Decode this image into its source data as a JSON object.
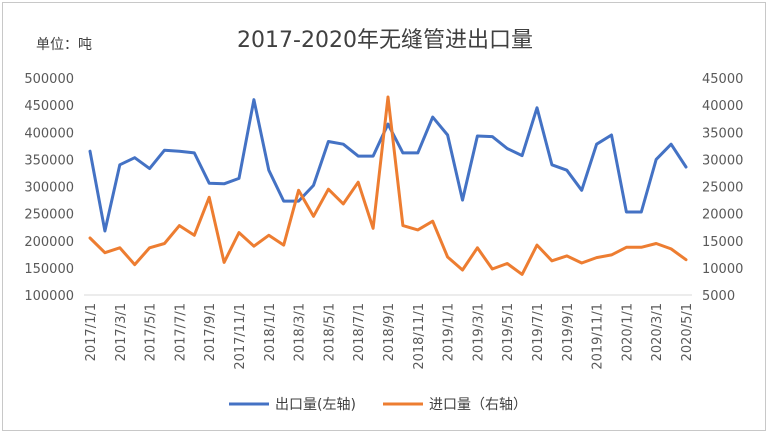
{
  "unit_label": "单位：吨",
  "title": "2017-2020年无缝管进出口量",
  "chart_data": {
    "type": "line",
    "title": "2017-2020年无缝管进出口量",
    "categories": [
      "2017/1/1",
      "2017/2/1",
      "2017/3/1",
      "2017/4/1",
      "2017/5/1",
      "2017/6/1",
      "2017/7/1",
      "2017/8/1",
      "2017/9/1",
      "2017/10/1",
      "2017/11/1",
      "2017/12/1",
      "2018/1/1",
      "2018/2/1",
      "2018/3/1",
      "2018/4/1",
      "2018/5/1",
      "2018/6/1",
      "2018/7/1",
      "2018/8/1",
      "2018/9/1",
      "2018/10/1",
      "2018/11/1",
      "2018/12/1",
      "2019/1/1",
      "2019/2/1",
      "2019/3/1",
      "2019/4/1",
      "2019/5/1",
      "2019/6/1",
      "2019/7/1",
      "2019/8/1",
      "2019/9/1",
      "2019/10/1",
      "2019/11/1",
      "2019/12/1",
      "2020/1/1",
      "2020/2/1",
      "2020/3/1",
      "2020/4/1",
      "2020/5/1"
    ],
    "tick_labels": [
      "2017/1/1",
      "2017/3/1",
      "2017/5/1",
      "2017/7/1",
      "2017/9/1",
      "2017/11/1",
      "2018/1/1",
      "2018/3/1",
      "2018/5/1",
      "2018/7/1",
      "2018/9/1",
      "2018/11/1",
      "2019/1/1",
      "2019/3/1",
      "2019/5/1",
      "2019/7/1",
      "2019/9/1",
      "2019/11/1",
      "2020/1/1",
      "2020/3/1",
      "2020/5/1"
    ],
    "y_left": {
      "min": 100000,
      "max": 500000,
      "ticks": [
        "500000",
        "450000",
        "400000",
        "350000",
        "300000",
        "250000",
        "200000",
        "150000",
        "100000"
      ]
    },
    "y_right": {
      "min": 5000,
      "max": 45000,
      "ticks": [
        "45000",
        "40000",
        "35000",
        "30000",
        "25000",
        "20000",
        "15000",
        "10000",
        "5000"
      ]
    },
    "series": [
      {
        "name": "出口量(左轴)",
        "axis": "left",
        "color": "#4472c4",
        "values": [
          365000,
          218000,
          340000,
          353000,
          333000,
          367000,
          365000,
          362000,
          306000,
          305000,
          315000,
          460000,
          330000,
          273000,
          273000,
          302000,
          383000,
          378000,
          356000,
          356000,
          415000,
          362000,
          362000,
          428000,
          395000,
          275000,
          393000,
          392000,
          370000,
          357000,
          445000,
          340000,
          330000,
          293000,
          378000,
          395000,
          253000,
          253000,
          350000,
          378000,
          336000
        ]
      },
      {
        "name": "进口量（右轴）",
        "axis": "right",
        "color": "#ed7d31",
        "values": [
          15500,
          12800,
          13700,
          10600,
          13700,
          14500,
          17800,
          16000,
          23000,
          11000,
          16500,
          14000,
          16000,
          14200,
          24300,
          19500,
          24500,
          21800,
          25800,
          17300,
          41500,
          17800,
          17000,
          18600,
          12000,
          9600,
          13700,
          9800,
          10800,
          8800,
          14200,
          11300,
          12200,
          10900,
          11900,
          12400,
          13800,
          13800,
          14500,
          13500,
          11500
        ]
      }
    ],
    "legend_position": "bottom"
  }
}
